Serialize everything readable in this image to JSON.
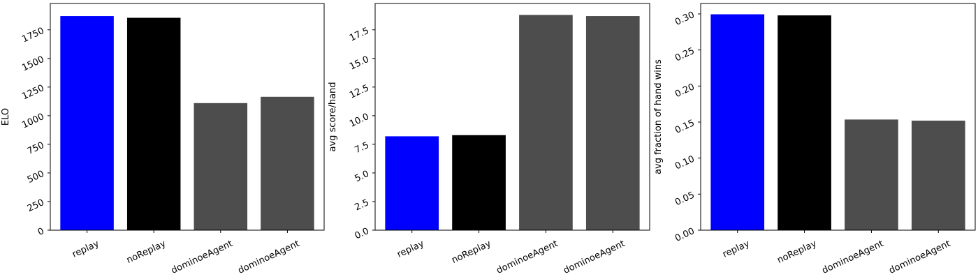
{
  "chart_data": [
    {
      "type": "bar",
      "categories": [
        "replay",
        "noReplay",
        "dominoeAgent",
        "dominoeAgent"
      ],
      "values": [
        1870,
        1855,
        1110,
        1165
      ],
      "colors": [
        "#0000ff",
        "#000000",
        "#4d4d4d",
        "#4d4d4d"
      ],
      "ylabel": "ELO",
      "ylim": [
        0,
        1980
      ],
      "yticks": [
        0,
        250,
        500,
        750,
        1000,
        1250,
        1500,
        1750
      ],
      "ytick_labels": [
        "0",
        "250",
        "500",
        "750",
        "1000",
        "1250",
        "1500",
        "1750"
      ],
      "grid": false
    },
    {
      "type": "bar",
      "categories": [
        "replay",
        "noReplay",
        "dominoeAgent",
        "dominoeAgent"
      ],
      "values": [
        8.2,
        8.3,
        18.8,
        18.7
      ],
      "colors": [
        "#0000ff",
        "#000000",
        "#4d4d4d",
        "#4d4d4d"
      ],
      "ylabel": "avg score/hand",
      "ylim": [
        0,
        19.8
      ],
      "yticks": [
        0,
        2.5,
        5,
        7.5,
        10,
        12.5,
        15,
        17.5
      ],
      "ytick_labels": [
        "0.0",
        "2.5",
        "5.0",
        "7.5",
        "10.0",
        "12.5",
        "15.0",
        "17.5"
      ],
      "grid": false
    },
    {
      "type": "bar",
      "categories": [
        "replay",
        "noReplay",
        "dominoeAgent",
        "dominoeAgent"
      ],
      "values": [
        0.2995,
        0.298,
        0.1535,
        0.152
      ],
      "colors": [
        "#0000ff",
        "#000000",
        "#4d4d4d",
        "#4d4d4d"
      ],
      "ylabel": "avg fraction of hand wins",
      "ylim": [
        0,
        0.3145
      ],
      "yticks": [
        0,
        0.05,
        0.1,
        0.15,
        0.2,
        0.25,
        0.3
      ],
      "ytick_labels": [
        "0.00",
        "0.05",
        "0.10",
        "0.15",
        "0.20",
        "0.25",
        "0.30"
      ],
      "grid": false
    }
  ]
}
